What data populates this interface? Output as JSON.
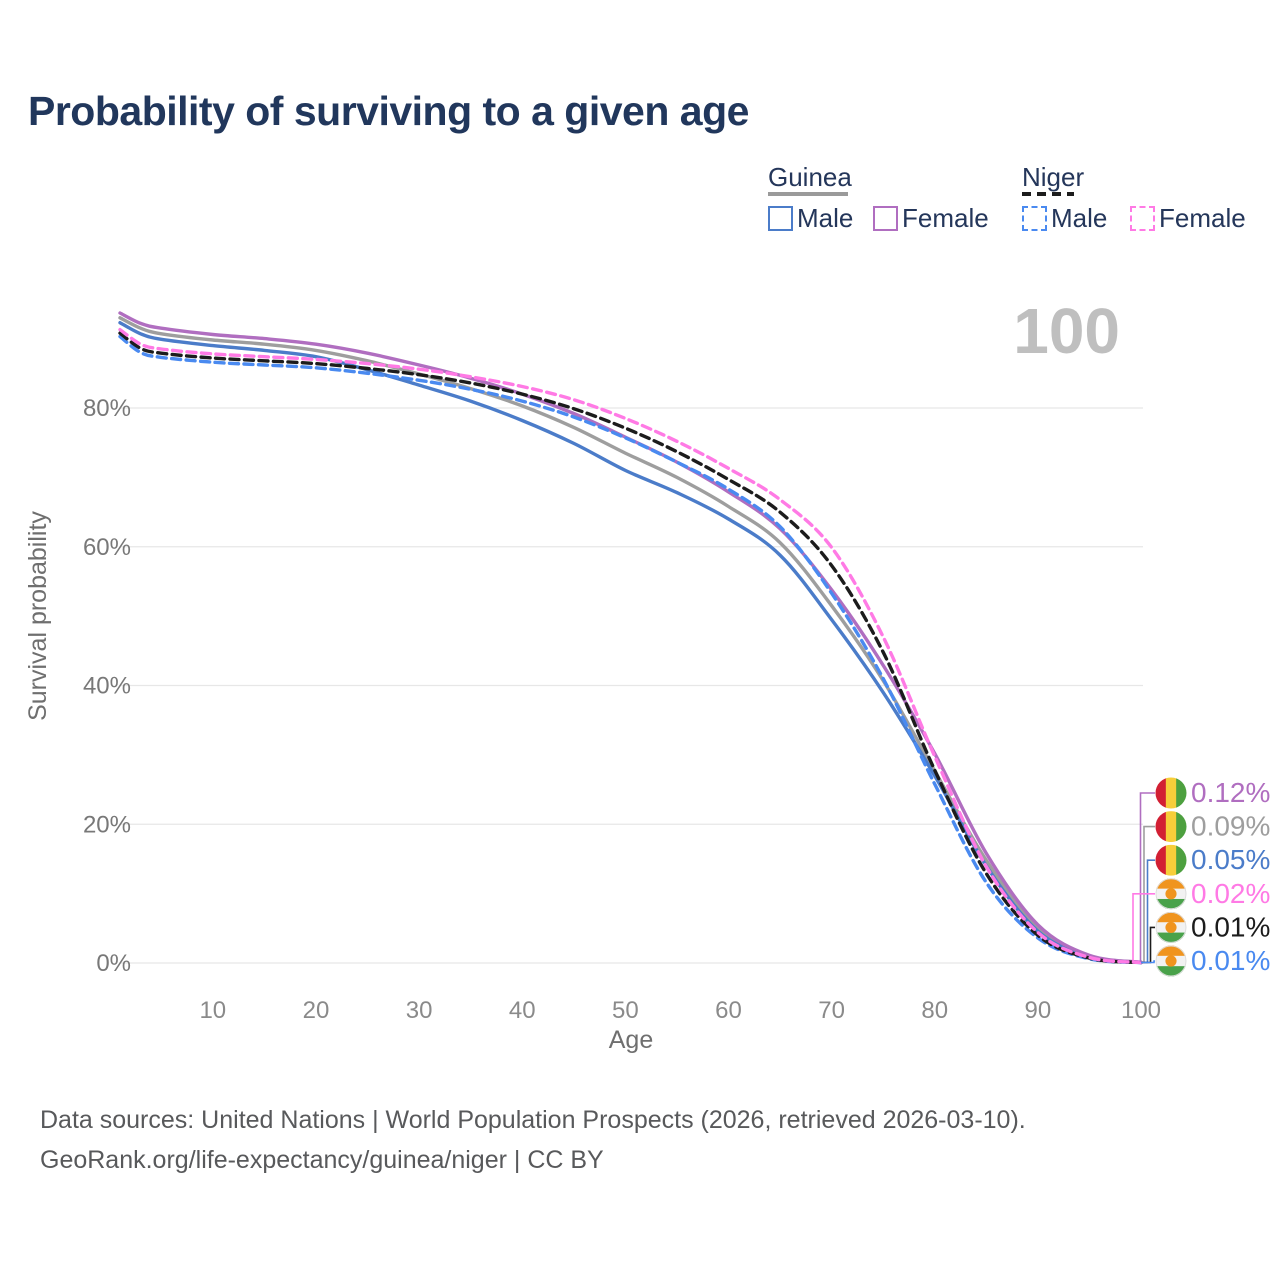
{
  "page_title": "Probability of surviving to a given age",
  "hover_age_label": "100",
  "legend": {
    "groups": [
      {
        "name": "Guinea",
        "line_style": "solid",
        "line_color": "#9a9a9a",
        "items": [
          {
            "label": "Male",
            "color": "#4b7cc9",
            "dashed": false
          },
          {
            "label": "Female",
            "color": "#b06ec0",
            "dashed": false
          }
        ]
      },
      {
        "name": "Niger",
        "line_style": "dashed",
        "line_color": "#1c1c1c",
        "items": [
          {
            "label": "Male",
            "color": "#4a8af0",
            "dashed": true
          },
          {
            "label": "Female",
            "color": "#ff7ae5",
            "dashed": true
          }
        ]
      }
    ]
  },
  "chart_data": {
    "type": "line",
    "title": "Probability of surviving to a given age",
    "xlabel": "Age",
    "ylabel": "Survival probability",
    "xlim": [
      1,
      100
    ],
    "ylim": [
      0,
      100
    ],
    "grid": "horizontal",
    "legend_position": "top-right",
    "x_ticks": [
      10,
      20,
      30,
      40,
      50,
      60,
      70,
      80,
      90,
      100
    ],
    "y_ticks": [
      {
        "value": 0,
        "label": "0%"
      },
      {
        "value": 20,
        "label": "20%"
      },
      {
        "value": 40,
        "label": "40%"
      },
      {
        "value": 60,
        "label": "60%"
      },
      {
        "value": 80,
        "label": "80%"
      }
    ],
    "ages": [
      1,
      3,
      5,
      10,
      15,
      20,
      25,
      30,
      35,
      40,
      45,
      50,
      55,
      60,
      65,
      70,
      75,
      80,
      85,
      90,
      95,
      100
    ],
    "series": [
      {
        "name": "Guinea Female",
        "country": "Guinea",
        "sex": "Female",
        "color": "#b06ec0",
        "dashed": false,
        "values": [
          93.7,
          92.2,
          91.5,
          90.6,
          90.0,
          89.2,
          87.9,
          86.2,
          84.3,
          82.0,
          79.2,
          75.8,
          72.2,
          67.9,
          62.6,
          53.8,
          42.9,
          30.2,
          15.8,
          5.5,
          1.1,
          0.12
        ]
      },
      {
        "name": "Guinea Both sexes",
        "country": "Guinea",
        "sex": "Both",
        "color": "#9e9e9e",
        "dashed": false,
        "values": [
          93.0,
          91.5,
          90.7,
          89.8,
          89.2,
          88.3,
          86.8,
          84.9,
          82.8,
          80.3,
          77.2,
          73.5,
          70.0,
          65.8,
          60.6,
          51.5,
          40.7,
          27.7,
          14.8,
          5.0,
          1.0,
          0.09
        ]
      },
      {
        "name": "Guinea Male",
        "country": "Guinea",
        "sex": "Male",
        "color": "#4b7cc9",
        "dashed": false,
        "values": [
          92.3,
          90.7,
          89.9,
          89.0,
          88.3,
          87.4,
          85.5,
          83.3,
          81.0,
          78.2,
          74.9,
          71.0,
          67.8,
          64.0,
          58.8,
          49.5,
          39.0,
          27.0,
          14.0,
          4.6,
          0.9,
          0.05
        ]
      },
      {
        "name": "Niger Female",
        "country": "Niger",
        "sex": "Female",
        "color": "#ff7ae5",
        "dashed": true,
        "values": [
          91.3,
          89.2,
          88.5,
          87.8,
          87.4,
          87.0,
          86.4,
          85.6,
          84.5,
          83.1,
          81.2,
          78.5,
          75.2,
          71.3,
          66.8,
          59.9,
          47.0,
          29.8,
          13.9,
          4.4,
          0.8,
          0.02
        ]
      },
      {
        "name": "Niger Both sexes",
        "country": "Niger",
        "sex": "Both",
        "color": "#1c1c1c",
        "dashed": true,
        "values": [
          90.8,
          88.6,
          87.9,
          87.2,
          86.8,
          86.4,
          85.7,
          84.8,
          83.6,
          82.0,
          79.9,
          77.1,
          73.7,
          69.7,
          65.0,
          57.3,
          44.8,
          27.8,
          12.9,
          4.0,
          0.7,
          0.01
        ]
      },
      {
        "name": "Niger Male",
        "country": "Niger",
        "sex": "Male",
        "color": "#4a8af0",
        "dashed": true,
        "values": [
          90.3,
          88.0,
          87.3,
          86.6,
          86.2,
          85.8,
          85.0,
          84.0,
          82.7,
          81.0,
          78.7,
          75.7,
          72.2,
          68.3,
          62.9,
          53.3,
          41.0,
          25.8,
          11.6,
          3.6,
          0.6,
          0.01
        ]
      }
    ],
    "end_labels": [
      {
        "flag": "guinea",
        "value": "0.12%",
        "color": "#b06ec0",
        "series": "Guinea Female"
      },
      {
        "flag": "guinea",
        "value": "0.09%",
        "color": "#9e9e9e",
        "series": "Guinea Both sexes"
      },
      {
        "flag": "guinea",
        "value": "0.05%",
        "color": "#4b7cc9",
        "series": "Guinea Male"
      },
      {
        "flag": "niger",
        "value": "0.02%",
        "color": "#ff7ae5",
        "series": "Niger Female"
      },
      {
        "flag": "niger",
        "value": "0.01%",
        "color": "#1c1c1c",
        "series": "Niger Both sexes"
      },
      {
        "flag": "niger",
        "value": "0.01%",
        "color": "#4a8af0",
        "series": "Niger Male"
      }
    ],
    "flag_colors": {
      "guinea": {
        "red": "#d21f33",
        "yellow": "#f7ce3a",
        "green": "#4da03f"
      },
      "niger": {
        "orange": "#f0941e",
        "white": "#f2f2f2",
        "green": "#49a24a"
      }
    }
  },
  "footer": {
    "line1": "Data sources: United Nations | World Population Prospects (2026, retrieved 2026-03-10).",
    "line2": "GeoRank.org/life-expectancy/guinea/niger | CC BY"
  }
}
